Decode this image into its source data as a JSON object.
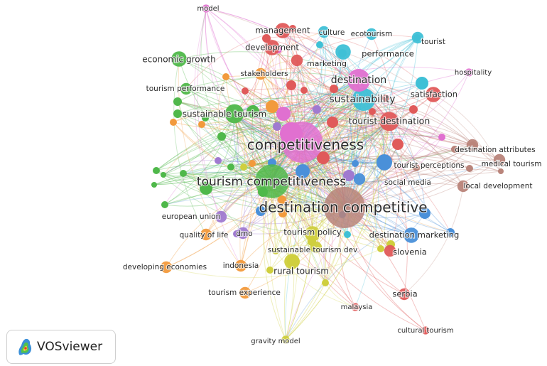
{
  "app": {
    "name": "VOSviewer"
  },
  "colors": {
    "clusters": {
      "red": "#e05a5a",
      "green": "#4fb84a",
      "blue": "#4a90d9",
      "yellow": "#cfcf3e",
      "purple": "#a07ad0",
      "cyan": "#3fc0d6",
      "orange": "#f29a3c",
      "brown": "#b9847a",
      "pink": "#e070d0"
    }
  },
  "nodes": [
    {
      "label": "competitiveness",
      "cluster": "pink",
      "weight": 10,
      "font": 20
    },
    {
      "label": "destination competitive",
      "cluster": "brown",
      "weight": 10,
      "font": 20
    },
    {
      "label": "tourism competitiveness",
      "cluster": "green",
      "weight": 8,
      "font": 17
    },
    {
      "label": "sustainability",
      "cluster": "cyan",
      "weight": 5,
      "font": 14
    },
    {
      "label": "destination",
      "cluster": "pink",
      "weight": 5,
      "font": 14
    },
    {
      "label": "sustainable tourism",
      "cluster": "green",
      "weight": 4,
      "font": 12
    },
    {
      "label": "tourist destination",
      "cluster": "red",
      "weight": 4,
      "font": 12.5
    },
    {
      "label": "economic growth",
      "cluster": "green",
      "weight": 3,
      "font": 12
    },
    {
      "label": "tourism performance",
      "cluster": "green",
      "weight": 2,
      "font": 10.5
    },
    {
      "label": "management",
      "cluster": "red",
      "weight": 3,
      "font": 11.5
    },
    {
      "label": "culture",
      "cluster": "cyan",
      "weight": 2,
      "font": 10.5
    },
    {
      "label": "ecotourism",
      "cluster": "cyan",
      "weight": 2,
      "font": 10.5
    },
    {
      "label": "tourist",
      "cluster": "cyan",
      "weight": 2,
      "font": 10.5
    },
    {
      "label": "model",
      "cluster": "pink",
      "weight": 1,
      "font": 10
    },
    {
      "label": "development",
      "cluster": "red",
      "weight": 3,
      "font": 11.5
    },
    {
      "label": "performance",
      "cluster": "cyan",
      "weight": 3,
      "font": 11.5
    },
    {
      "label": "marketing",
      "cluster": "red",
      "weight": 2,
      "font": 11
    },
    {
      "label": "stakeholders",
      "cluster": "orange",
      "weight": 2,
      "font": 10.5
    },
    {
      "label": "hospitality",
      "cluster": "pink",
      "weight": 1,
      "font": 10
    },
    {
      "label": "satisfaction",
      "cluster": "red",
      "weight": 3,
      "font": 11.5
    },
    {
      "label": "destination attributes",
      "cluster": "brown",
      "weight": 2,
      "font": 10.5
    },
    {
      "label": "medical tourism",
      "cluster": "brown",
      "weight": 2,
      "font": 10.5
    },
    {
      "label": "tourist perceptions",
      "cluster": "blue",
      "weight": 3,
      "font": 10.5
    },
    {
      "label": "social media",
      "cluster": "blue",
      "weight": 2,
      "font": 10.5
    },
    {
      "label": "local development",
      "cluster": "brown",
      "weight": 2,
      "font": 10.5
    },
    {
      "label": "european union",
      "cluster": "purple",
      "weight": 2,
      "font": 10.5
    },
    {
      "label": "quality of life",
      "cluster": "orange",
      "weight": 2,
      "font": 10.5
    },
    {
      "label": "dmo",
      "cluster": "purple",
      "weight": 2,
      "font": 10.5
    },
    {
      "label": "tourism policy",
      "cluster": "yellow",
      "weight": 3,
      "font": 11.5
    },
    {
      "label": "destination marketing",
      "cluster": "blue",
      "weight": 3,
      "font": 11.5
    },
    {
      "label": "sustainable tourism dev",
      "cluster": "yellow",
      "weight": 2,
      "font": 10.5
    },
    {
      "label": "slovenia",
      "cluster": "red",
      "weight": 2,
      "font": 11.5
    },
    {
      "label": "developing economies",
      "cluster": "orange",
      "weight": 2,
      "font": 10.5
    },
    {
      "label": "indonesia",
      "cluster": "orange",
      "weight": 2,
      "font": 10.5
    },
    {
      "label": "rural tourism",
      "cluster": "yellow",
      "weight": 3,
      "font": 12
    },
    {
      "label": "tourism experience",
      "cluster": "orange",
      "weight": 2,
      "font": 10.5
    },
    {
      "label": "serbia",
      "cluster": "red",
      "weight": 2,
      "font": 11.5
    },
    {
      "label": "malaysia",
      "cluster": "red",
      "weight": 1,
      "font": 10
    },
    {
      "label": "cultural tourism",
      "cluster": "red",
      "weight": 1,
      "font": 10
    },
    {
      "label": "gravity model",
      "cluster": "yellow",
      "weight": 1,
      "font": 10
    }
  ]
}
